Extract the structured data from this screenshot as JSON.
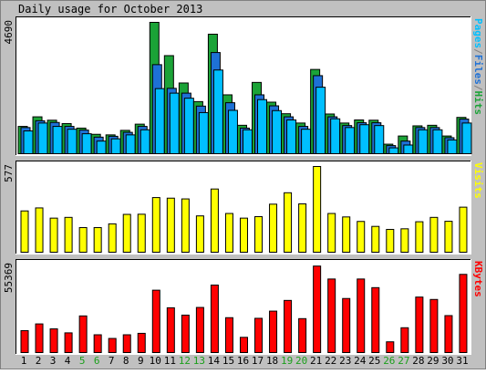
{
  "title": "Daily usage for October 2013",
  "colors": {
    "hits": "#1ba337",
    "files": "#1e71d6",
    "pages": "#00bfff",
    "visits": "#ffff00",
    "kbytes": "#ff0000",
    "weekday_label": "#000000",
    "weekend_label": "#1a9f1a",
    "panel_bg": "#ffffff",
    "frame_bg": "#c0c0c0"
  },
  "chart_data": [
    {
      "type": "bar",
      "panel": "hits-files-pages",
      "ymax_label": "4690",
      "ymax": 4690,
      "legend": [
        {
          "text": "Pages",
          "color_key": "pages"
        },
        {
          "text": "/",
          "color_key": "sep"
        },
        {
          "text": "Files",
          "color_key": "files"
        },
        {
          "text": "/",
          "color_key": "sep"
        },
        {
          "text": "Hits",
          "color_key": "hits"
        }
      ],
      "categories": [
        "1",
        "2",
        "3",
        "4",
        "5",
        "6",
        "7",
        "8",
        "9",
        "10",
        "11",
        "12",
        "13",
        "14",
        "15",
        "16",
        "17",
        "18",
        "19",
        "20",
        "21",
        "22",
        "23",
        "24",
        "25",
        "26",
        "27",
        "28",
        "29",
        "30",
        "31"
      ],
      "series": [
        {
          "name": "Hits",
          "color_key": "hits",
          "values": [
            1000,
            1340,
            1220,
            1100,
            940,
            720,
            700,
            860,
            1080,
            4690,
            3510,
            2540,
            1880,
            4270,
            2120,
            1040,
            2560,
            1860,
            1450,
            1120,
            3020,
            1440,
            1120,
            1230,
            1220,
            370,
            660,
            1020,
            1040,
            660,
            1320
          ]
        },
        {
          "name": "Files",
          "color_key": "files",
          "values": [
            960,
            1200,
            1140,
            1000,
            870,
            620,
            650,
            790,
            1000,
            3190,
            2350,
            2180,
            1720,
            3620,
            1840,
            940,
            2120,
            1730,
            1340,
            1000,
            2800,
            1340,
            1030,
            1130,
            1130,
            320,
            480,
            960,
            960,
            600,
            1260
          ]
        },
        {
          "name": "Pages",
          "color_key": "pages",
          "values": [
            840,
            1120,
            1000,
            900,
            740,
            480,
            560,
            700,
            880,
            2340,
            2180,
            2000,
            1490,
            3000,
            1570,
            880,
            1950,
            1560,
            1230,
            900,
            2390,
            1270,
            960,
            1060,
            1030,
            240,
            340,
            880,
            880,
            520,
            1120
          ]
        }
      ]
    },
    {
      "type": "bar",
      "panel": "visits",
      "ymax_label": "577",
      "ymax": 577,
      "legend": [
        {
          "text": "Visits",
          "color_key": "visits"
        }
      ],
      "categories": [
        "1",
        "2",
        "3",
        "4",
        "5",
        "6",
        "7",
        "8",
        "9",
        "10",
        "11",
        "12",
        "13",
        "14",
        "15",
        "16",
        "17",
        "18",
        "19",
        "20",
        "21",
        "22",
        "23",
        "24",
        "25",
        "26",
        "27",
        "28",
        "29",
        "30",
        "31"
      ],
      "series": [
        {
          "name": "Visits",
          "color_key": "visits",
          "values": [
            281,
            301,
            233,
            238,
            170,
            170,
            195,
            258,
            259,
            370,
            366,
            361,
            248,
            427,
            264,
            233,
            243,
            326,
            402,
            328,
            577,
            264,
            241,
            211,
            178,
            158,
            162,
            209,
            238,
            212,
            306
          ]
        }
      ]
    },
    {
      "type": "bar",
      "panel": "kbytes",
      "ymax_label": "55369",
      "ymax": 55369,
      "legend": [
        {
          "text": "KBytes",
          "color_key": "kbytes"
        }
      ],
      "categories": [
        "1",
        "2",
        "3",
        "4",
        "5",
        "6",
        "7",
        "8",
        "9",
        "10",
        "11",
        "12",
        "13",
        "14",
        "15",
        "16",
        "17",
        "18",
        "19",
        "20",
        "21",
        "22",
        "23",
        "24",
        "25",
        "26",
        "27",
        "28",
        "29",
        "30",
        "31"
      ],
      "series": [
        {
          "name": "KBytes",
          "color_key": "kbytes",
          "values": [
            14300,
            18500,
            15400,
            12900,
            23500,
            11700,
            9400,
            11700,
            12600,
            39600,
            28600,
            24000,
            28800,
            42800,
            22400,
            10100,
            22000,
            26500,
            33200,
            21800,
            54700,
            46600,
            34400,
            46600,
            41200,
            7300,
            16100,
            35300,
            33800,
            23700,
            49500
          ]
        }
      ]
    }
  ],
  "x_labels": [
    {
      "text": "1",
      "weekend": false
    },
    {
      "text": "2",
      "weekend": false
    },
    {
      "text": "3",
      "weekend": false
    },
    {
      "text": "4",
      "weekend": false
    },
    {
      "text": "5",
      "weekend": true
    },
    {
      "text": "6",
      "weekend": true
    },
    {
      "text": "7",
      "weekend": false
    },
    {
      "text": "8",
      "weekend": false
    },
    {
      "text": "9",
      "weekend": false
    },
    {
      "text": "10",
      "weekend": false
    },
    {
      "text": "11",
      "weekend": false
    },
    {
      "text": "12",
      "weekend": true
    },
    {
      "text": "13",
      "weekend": true
    },
    {
      "text": "14",
      "weekend": false
    },
    {
      "text": "15",
      "weekend": false
    },
    {
      "text": "16",
      "weekend": false
    },
    {
      "text": "17",
      "weekend": false
    },
    {
      "text": "18",
      "weekend": false
    },
    {
      "text": "19",
      "weekend": true
    },
    {
      "text": "20",
      "weekend": true
    },
    {
      "text": "21",
      "weekend": false
    },
    {
      "text": "22",
      "weekend": false
    },
    {
      "text": "23",
      "weekend": false
    },
    {
      "text": "24",
      "weekend": false
    },
    {
      "text": "25",
      "weekend": false
    },
    {
      "text": "26",
      "weekend": true
    },
    {
      "text": "27",
      "weekend": true
    },
    {
      "text": "28",
      "weekend": false
    },
    {
      "text": "29",
      "weekend": false
    },
    {
      "text": "30",
      "weekend": false
    },
    {
      "text": "31",
      "weekend": false
    }
  ]
}
